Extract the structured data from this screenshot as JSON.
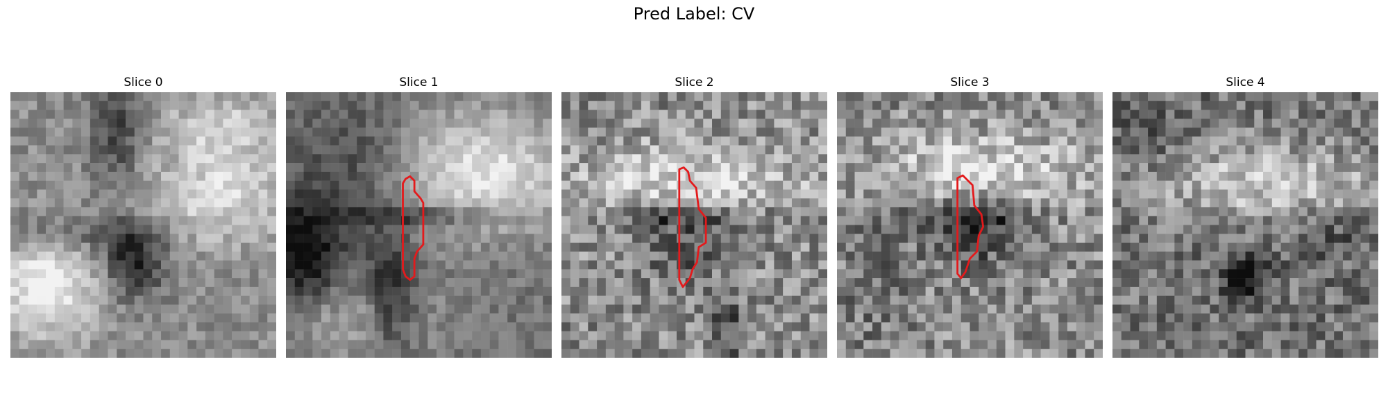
{
  "title": "Pred Label: CV",
  "slices": [
    {
      "label": "Slice 0",
      "seed": 11,
      "has_contour": false
    },
    {
      "label": "Slice 1",
      "seed": 23,
      "has_contour": true
    },
    {
      "label": "Slice 2",
      "seed": 37,
      "has_contour": true
    },
    {
      "label": "Slice 3",
      "seed": 53,
      "has_contour": true
    },
    {
      "label": "Slice 4",
      "seed": 71,
      "has_contour": false
    }
  ],
  "colors": {
    "contour": "#e31a1c",
    "background": "#ffffff"
  },
  "colormap": "gray"
}
